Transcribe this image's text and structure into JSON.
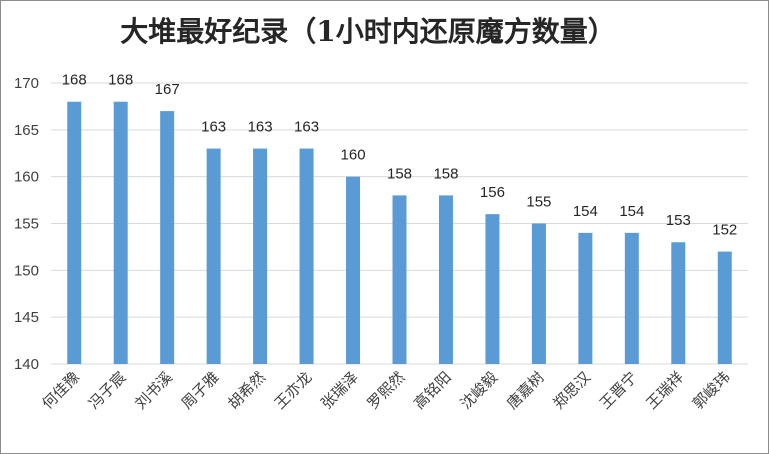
{
  "chart_data": {
    "type": "bar",
    "title": "大堆最好纪录（1小时内还原魔方数量）",
    "xlabel": "",
    "ylabel": "",
    "categories": [
      "何佳豫",
      "冯子宸",
      "刘书溪",
      "周子雅",
      "胡希然",
      "王亦龙",
      "张瑞泽",
      "罗熙然",
      "高铭阳",
      "沈峻毅",
      "唐嘉树",
      "郑思汉",
      "王晋宁",
      "王瑞祥",
      "郭峻玮"
    ],
    "values": [
      168,
      168,
      167,
      163,
      163,
      163,
      160,
      158,
      158,
      156,
      155,
      154,
      154,
      153,
      152
    ],
    "ylim": [
      140,
      170
    ],
    "yticks": [
      140,
      145,
      150,
      155,
      160,
      165,
      170
    ],
    "grid": true,
    "legend": "none",
    "bar_color": "#5b9bd5",
    "grid_color": "#d9d9d9"
  }
}
